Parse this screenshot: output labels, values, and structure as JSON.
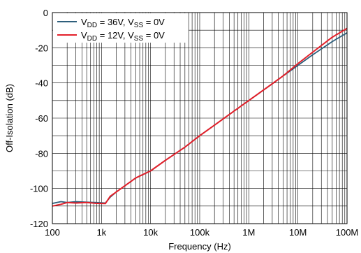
{
  "chart_data": {
    "type": "line",
    "xlabel": "Frequency (Hz)",
    "ylabel": "Off-Isolation (dB)",
    "x_scale": "log",
    "xlim": [
      100,
      100000000
    ],
    "ylim": [
      -120,
      0
    ],
    "grid": true,
    "legend_placement": "top-left",
    "x_ticks": [
      100,
      1000,
      10000,
      100000,
      1000000,
      10000000,
      100000000
    ],
    "x_tick_labels": [
      "100",
      "1k",
      "10k",
      "100k",
      "1M",
      "10M",
      "100M"
    ],
    "y_ticks": [
      -120,
      -100,
      -80,
      -60,
      -40,
      -20,
      0
    ],
    "y_tick_labels": [
      "-120",
      "-100",
      "-80",
      "-60",
      "-40",
      "-20",
      "0"
    ],
    "series": [
      {
        "name": "V_DD = 36V, V_SS = 0V",
        "label_parts": {
          "v1": "V",
          "sub1": "DD",
          "mid": " = 36V, V",
          "sub2": "SS",
          "end": " = 0V"
        },
        "color": "#2e5f7c",
        "points": [
          [
            100,
            -108.5
          ],
          [
            150,
            -107.5
          ],
          [
            200,
            -108
          ],
          [
            300,
            -107.5
          ],
          [
            500,
            -107.8
          ],
          [
            800,
            -108
          ],
          [
            1200,
            -108.3
          ],
          [
            1500,
            -105
          ],
          [
            2000,
            -102
          ],
          [
            5000,
            -94
          ],
          [
            10000,
            -90
          ],
          [
            20000,
            -84
          ],
          [
            50000,
            -76.5
          ],
          [
            100000,
            -70
          ],
          [
            200000,
            -64
          ],
          [
            500000,
            -56
          ],
          [
            1000000,
            -50
          ],
          [
            2000000,
            -44
          ],
          [
            5000000,
            -36
          ],
          [
            10000000,
            -30
          ],
          [
            20000000,
            -24
          ],
          [
            50000000,
            -16.5
          ],
          [
            100000000,
            -11.5
          ]
        ]
      },
      {
        "name": "V_DD = 12V, V_SS = 0V",
        "label_parts": {
          "v1": "V",
          "sub1": "DD",
          "mid": " = 12V, V",
          "sub2": "SS",
          "end": " = 0V"
        },
        "color": "#e3202a",
        "points": [
          [
            100,
            -110
          ],
          [
            150,
            -109
          ],
          [
            200,
            -108
          ],
          [
            300,
            -108.3
          ],
          [
            500,
            -108
          ],
          [
            800,
            -108.5
          ],
          [
            1200,
            -108.6
          ],
          [
            1500,
            -104.5
          ],
          [
            2000,
            -102
          ],
          [
            5000,
            -94
          ],
          [
            10000,
            -90
          ],
          [
            20000,
            -84
          ],
          [
            50000,
            -76.5
          ],
          [
            100000,
            -70
          ],
          [
            200000,
            -64
          ],
          [
            500000,
            -56
          ],
          [
            1000000,
            -50
          ],
          [
            2000000,
            -44
          ],
          [
            5000000,
            -36
          ],
          [
            10000000,
            -29
          ],
          [
            20000000,
            -22.5
          ],
          [
            50000000,
            -14
          ],
          [
            100000000,
            -9
          ]
        ]
      }
    ]
  }
}
